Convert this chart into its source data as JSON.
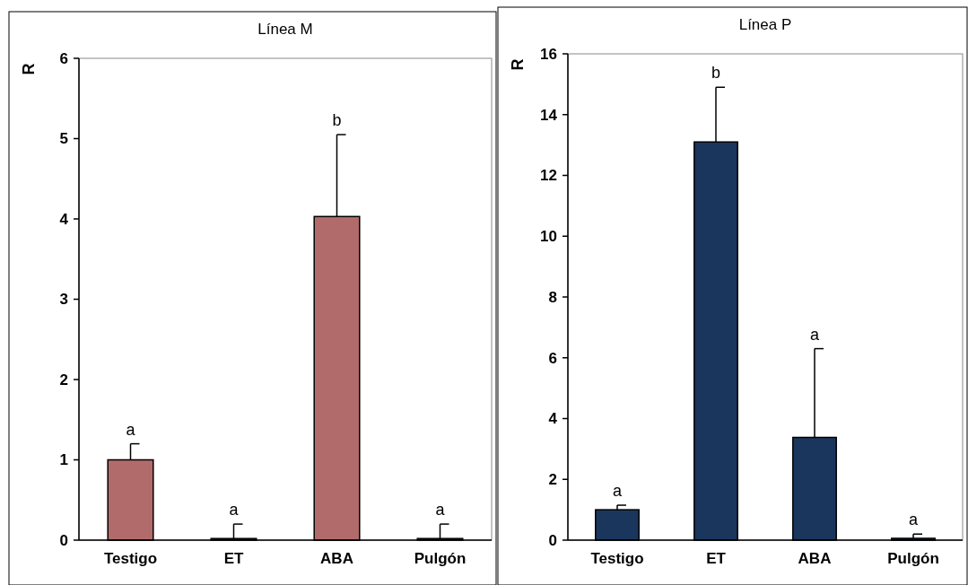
{
  "chart_data": [
    {
      "type": "bar",
      "title": "Línea M",
      "ylabel": "R",
      "categories": [
        "Testigo",
        "ET",
        "ABA",
        "Pulgón"
      ],
      "values": [
        1.0,
        0.02,
        4.03,
        0.02
      ],
      "errors": [
        [
          1.0,
          1.2
        ],
        [
          0.02,
          0.2
        ],
        [
          4.03,
          5.05
        ],
        [
          0.02,
          0.2
        ]
      ],
      "color": "#b26b6b",
      "ylim": [
        0,
        6
      ],
      "yticks": [
        0,
        1,
        2,
        3,
        4,
        5,
        6
      ],
      "grid": false,
      "annotations": [
        {
          "text": "a",
          "x": "Testigo",
          "y": 1.2
        },
        {
          "text": "a",
          "x": "ET",
          "y": 0.2
        },
        {
          "text": "b",
          "x": "ABA",
          "y": 5.05
        },
        {
          "text": "a",
          "x": "Pulgón",
          "y": 0.2
        }
      ]
    },
    {
      "type": "bar",
      "title": "Línea P",
      "ylabel": "R",
      "categories": [
        "Testigo",
        "ET",
        "ABA",
        "Pulgón"
      ],
      "values": [
        1.0,
        13.1,
        3.38,
        0.06
      ],
      "errors": [
        [
          1.0,
          1.15
        ],
        [
          13.1,
          14.9
        ],
        [
          3.38,
          6.3
        ],
        [
          0.06,
          0.2
        ]
      ],
      "color": "#1b365d",
      "ylim": [
        0,
        16
      ],
      "yticks": [
        0,
        2,
        4,
        6,
        8,
        10,
        12,
        14,
        16
      ],
      "grid": false,
      "annotations": [
        {
          "text": "a",
          "x": "Testigo",
          "y": 1.15
        },
        {
          "text": "b",
          "x": "ET",
          "y": 14.9
        },
        {
          "text": "a",
          "x": "ABA",
          "y": 6.3
        },
        {
          "text": "a",
          "x": "Pulgón",
          "y": 0.2
        }
      ]
    }
  ]
}
